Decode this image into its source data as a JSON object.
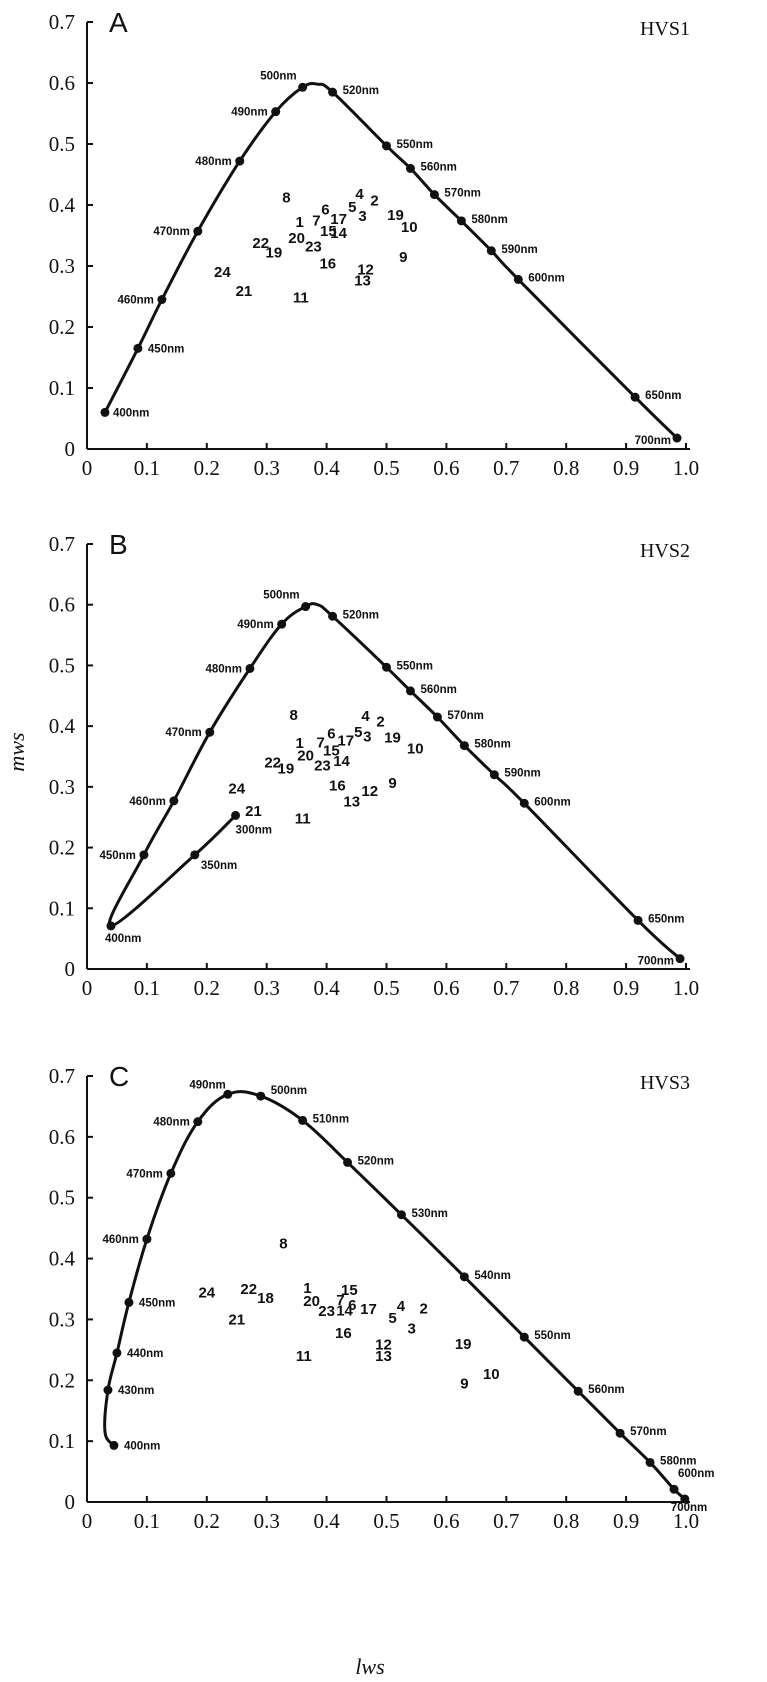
{
  "axes": {
    "x_label": "lws",
    "y_label": "mws",
    "x_ticks": [
      "0",
      "0.1",
      "0.2",
      "0.3",
      "0.4",
      "0.5",
      "0.6",
      "0.7",
      "0.8",
      "0.9",
      "1.0"
    ],
    "y_ticks": [
      "0",
      "0.1",
      "0.2",
      "0.3",
      "0.4",
      "0.5",
      "0.6",
      "0.7"
    ]
  },
  "chart_data": [
    {
      "type": "scatter",
      "panel": "A",
      "title": "HVS1",
      "xlim": [
        0,
        1.0
      ],
      "ylim": [
        0,
        0.7
      ],
      "locus": [
        {
          "label": "400nm",
          "x": 0.03,
          "y": 0.06
        },
        {
          "label": "450nm",
          "x": 0.085,
          "y": 0.165
        },
        {
          "label": "460nm",
          "x": 0.125,
          "y": 0.245
        },
        {
          "label": "470nm",
          "x": 0.185,
          "y": 0.357
        },
        {
          "label": "480nm",
          "x": 0.255,
          "y": 0.472
        },
        {
          "label": "490nm",
          "x": 0.315,
          "y": 0.553
        },
        {
          "label": "500nm",
          "x": 0.36,
          "y": 0.593
        },
        {
          "label": "",
          "x": 0.385,
          "y": 0.598
        },
        {
          "label": "520nm",
          "x": 0.41,
          "y": 0.585
        },
        {
          "label": "550nm",
          "x": 0.5,
          "y": 0.497
        },
        {
          "label": "560nm",
          "x": 0.54,
          "y": 0.46
        },
        {
          "label": "570nm",
          "x": 0.58,
          "y": 0.417
        },
        {
          "label": "580nm",
          "x": 0.625,
          "y": 0.374
        },
        {
          "label": "590nm",
          "x": 0.675,
          "y": 0.325
        },
        {
          "label": "600nm",
          "x": 0.72,
          "y": 0.278
        },
        {
          "label": "650nm",
          "x": 0.915,
          "y": 0.085
        },
        {
          "label": "700nm",
          "x": 0.985,
          "y": 0.018
        }
      ],
      "markers": [
        "400nm",
        "450nm",
        "460nm",
        "470nm",
        "480nm",
        "490nm",
        "500nm",
        "520nm",
        "550nm",
        "560nm",
        "570nm",
        "580nm",
        "590nm",
        "600nm",
        "650nm",
        "700nm"
      ],
      "samples": [
        {
          "label": "1",
          "x": 0.355,
          "y": 0.372
        },
        {
          "label": "2",
          "x": 0.48,
          "y": 0.407
        },
        {
          "label": "3",
          "x": 0.46,
          "y": 0.382
        },
        {
          "label": "4",
          "x": 0.455,
          "y": 0.418
        },
        {
          "label": "5",
          "x": 0.443,
          "y": 0.397
        },
        {
          "label": "6",
          "x": 0.398,
          "y": 0.393
        },
        {
          "label": "7",
          "x": 0.383,
          "y": 0.375
        },
        {
          "label": "8",
          "x": 0.333,
          "y": 0.412
        },
        {
          "label": "9",
          "x": 0.528,
          "y": 0.315
        },
        {
          "label": "10",
          "x": 0.538,
          "y": 0.364
        },
        {
          "label": "11",
          "x": 0.357,
          "y": 0.248
        },
        {
          "label": "12",
          "x": 0.465,
          "y": 0.294
        },
        {
          "label": "13",
          "x": 0.46,
          "y": 0.276
        },
        {
          "label": "14",
          "x": 0.42,
          "y": 0.354
        },
        {
          "label": "15",
          "x": 0.403,
          "y": 0.357
        },
        {
          "label": "16",
          "x": 0.402,
          "y": 0.304
        },
        {
          "label": "17",
          "x": 0.42,
          "y": 0.377
        },
        {
          "label": "19",
          "x": 0.515,
          "y": 0.384
        },
        {
          "label": "20",
          "x": 0.35,
          "y": 0.346
        },
        {
          "label": "21",
          "x": 0.262,
          "y": 0.259
        },
        {
          "label": "22",
          "x": 0.29,
          "y": 0.338
        },
        {
          "label": "23",
          "x": 0.378,
          "y": 0.332
        },
        {
          "label": "19",
          "x": 0.312,
          "y": 0.322
        },
        {
          "label": "24",
          "x": 0.226,
          "y": 0.29
        }
      ]
    },
    {
      "type": "scatter",
      "panel": "B",
      "title": "HVS2",
      "xlim": [
        0,
        1.0
      ],
      "ylim": [
        0,
        0.7
      ],
      "locus": [
        {
          "label": "300nm",
          "x": 0.248,
          "y": 0.253
        },
        {
          "label": "350nm",
          "x": 0.18,
          "y": 0.188
        },
        {
          "label": "400nm",
          "x": 0.04,
          "y": 0.071
        },
        {
          "label": "450nm",
          "x": 0.095,
          "y": 0.188
        },
        {
          "label": "460nm",
          "x": 0.145,
          "y": 0.277
        },
        {
          "label": "470nm",
          "x": 0.205,
          "y": 0.39
        },
        {
          "label": "480nm",
          "x": 0.272,
          "y": 0.495
        },
        {
          "label": "490nm",
          "x": 0.325,
          "y": 0.568
        },
        {
          "label": "500nm",
          "x": 0.365,
          "y": 0.597
        },
        {
          "label": "",
          "x": 0.385,
          "y": 0.6
        },
        {
          "label": "520nm",
          "x": 0.41,
          "y": 0.581
        },
        {
          "label": "550nm",
          "x": 0.5,
          "y": 0.497
        },
        {
          "label": "560nm",
          "x": 0.54,
          "y": 0.458
        },
        {
          "label": "570nm",
          "x": 0.585,
          "y": 0.415
        },
        {
          "label": "580nm",
          "x": 0.63,
          "y": 0.368
        },
        {
          "label": "590nm",
          "x": 0.68,
          "y": 0.32
        },
        {
          "label": "600nm",
          "x": 0.73,
          "y": 0.273
        },
        {
          "label": "650nm",
          "x": 0.92,
          "y": 0.08
        },
        {
          "label": "700nm",
          "x": 0.99,
          "y": 0.017
        }
      ],
      "markers": [
        "300nm",
        "350nm",
        "400nm",
        "450nm",
        "460nm",
        "470nm",
        "480nm",
        "490nm",
        "500nm",
        "520nm",
        "550nm",
        "560nm",
        "570nm",
        "580nm",
        "590nm",
        "600nm",
        "650nm",
        "700nm"
      ],
      "samples": [
        {
          "label": "1",
          "x": 0.355,
          "y": 0.372
        },
        {
          "label": "2",
          "x": 0.49,
          "y": 0.408
        },
        {
          "label": "3",
          "x": 0.468,
          "y": 0.383
        },
        {
          "label": "4",
          "x": 0.465,
          "y": 0.417
        },
        {
          "label": "5",
          "x": 0.453,
          "y": 0.39
        },
        {
          "label": "6",
          "x": 0.408,
          "y": 0.388
        },
        {
          "label": "7",
          "x": 0.39,
          "y": 0.373
        },
        {
          "label": "8",
          "x": 0.345,
          "y": 0.418
        },
        {
          "label": "9",
          "x": 0.51,
          "y": 0.306
        },
        {
          "label": "10",
          "x": 0.548,
          "y": 0.363
        },
        {
          "label": "11",
          "x": 0.36,
          "y": 0.248
        },
        {
          "label": "12",
          "x": 0.472,
          "y": 0.293
        },
        {
          "label": "13",
          "x": 0.442,
          "y": 0.276
        },
        {
          "label": "14",
          "x": 0.425,
          "y": 0.343
        },
        {
          "label": "15",
          "x": 0.408,
          "y": 0.36
        },
        {
          "label": "16",
          "x": 0.418,
          "y": 0.302
        },
        {
          "label": "17",
          "x": 0.432,
          "y": 0.376
        },
        {
          "label": "19",
          "x": 0.51,
          "y": 0.381
        },
        {
          "label": "20",
          "x": 0.365,
          "y": 0.352
        },
        {
          "label": "21",
          "x": 0.278,
          "y": 0.26
        },
        {
          "label": "22",
          "x": 0.31,
          "y": 0.34
        },
        {
          "label": "23",
          "x": 0.393,
          "y": 0.335
        },
        {
          "label": "19",
          "x": 0.332,
          "y": 0.33
        },
        {
          "label": "24",
          "x": 0.25,
          "y": 0.297
        }
      ]
    },
    {
      "type": "scatter",
      "panel": "C",
      "title": "HVS3",
      "xlim": [
        0,
        1.0
      ],
      "ylim": [
        0,
        0.7
      ],
      "locus": [
        {
          "label": "400nm",
          "x": 0.045,
          "y": 0.093
        },
        {
          "label": "",
          "x": 0.03,
          "y": 0.115
        },
        {
          "label": "430nm",
          "x": 0.035,
          "y": 0.184
        },
        {
          "label": "440nm",
          "x": 0.05,
          "y": 0.245
        },
        {
          "label": "450nm",
          "x": 0.07,
          "y": 0.328
        },
        {
          "label": "460nm",
          "x": 0.1,
          "y": 0.432
        },
        {
          "label": "470nm",
          "x": 0.14,
          "y": 0.54
        },
        {
          "label": "480nm",
          "x": 0.185,
          "y": 0.625
        },
        {
          "label": "490nm",
          "x": 0.235,
          "y": 0.67
        },
        {
          "label": "500nm",
          "x": 0.29,
          "y": 0.667
        },
        {
          "label": "510nm",
          "x": 0.36,
          "y": 0.627
        },
        {
          "label": "520nm",
          "x": 0.435,
          "y": 0.558
        },
        {
          "label": "530nm",
          "x": 0.525,
          "y": 0.472
        },
        {
          "label": "540nm",
          "x": 0.63,
          "y": 0.37
        },
        {
          "label": "550nm",
          "x": 0.73,
          "y": 0.271
        },
        {
          "label": "560nm",
          "x": 0.82,
          "y": 0.182
        },
        {
          "label": "570nm",
          "x": 0.89,
          "y": 0.113
        },
        {
          "label": "580nm",
          "x": 0.94,
          "y": 0.065
        },
        {
          "label": "600nm",
          "x": 0.98,
          "y": 0.021
        },
        {
          "label": "700nm",
          "x": 0.998,
          "y": 0.005
        }
      ],
      "markers": [
        "400nm",
        "430nm",
        "440nm",
        "450nm",
        "460nm",
        "470nm",
        "480nm",
        "490nm",
        "500nm",
        "510nm",
        "520nm",
        "530nm",
        "540nm",
        "550nm",
        "560nm",
        "570nm",
        "580nm",
        "600nm",
        "700nm"
      ],
      "samples": [
        {
          "label": "1",
          "x": 0.368,
          "y": 0.352
        },
        {
          "label": "2",
          "x": 0.562,
          "y": 0.318
        },
        {
          "label": "3",
          "x": 0.542,
          "y": 0.285
        },
        {
          "label": "4",
          "x": 0.524,
          "y": 0.322
        },
        {
          "label": "5",
          "x": 0.51,
          "y": 0.302
        },
        {
          "label": "6",
          "x": 0.443,
          "y": 0.324
        },
        {
          "label": "7",
          "x": 0.423,
          "y": 0.332
        },
        {
          "label": "8",
          "x": 0.328,
          "y": 0.425
        },
        {
          "label": "9",
          "x": 0.63,
          "y": 0.195
        },
        {
          "label": "10",
          "x": 0.675,
          "y": 0.21
        },
        {
          "label": "11",
          "x": 0.362,
          "y": 0.24
        },
        {
          "label": "12",
          "x": 0.495,
          "y": 0.259
        },
        {
          "label": "13",
          "x": 0.495,
          "y": 0.24
        },
        {
          "label": "14",
          "x": 0.43,
          "y": 0.315
        },
        {
          "label": "15",
          "x": 0.438,
          "y": 0.348
        },
        {
          "label": "16",
          "x": 0.428,
          "y": 0.278
        },
        {
          "label": "17",
          "x": 0.47,
          "y": 0.317
        },
        {
          "label": "18",
          "x": 0.298,
          "y": 0.335
        },
        {
          "label": "19",
          "x": 0.628,
          "y": 0.26
        },
        {
          "label": "20",
          "x": 0.375,
          "y": 0.33
        },
        {
          "label": "21",
          "x": 0.25,
          "y": 0.3
        },
        {
          "label": "22",
          "x": 0.27,
          "y": 0.35
        },
        {
          "label": "23",
          "x": 0.4,
          "y": 0.314
        },
        {
          "label": "24",
          "x": 0.2,
          "y": 0.344
        }
      ]
    }
  ]
}
